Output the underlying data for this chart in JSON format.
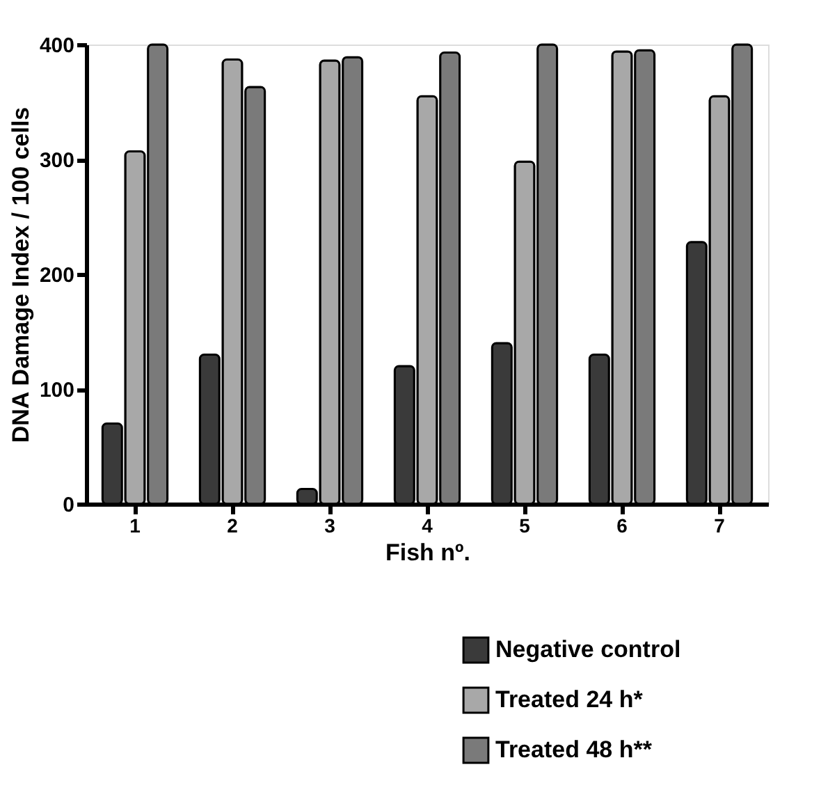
{
  "chart_data": {
    "type": "bar",
    "xlabel": "Fish nº.",
    "ylabel": "DNA Damage Index / 100 cells",
    "categories": [
      "1",
      "2",
      "3",
      "4",
      "5",
      "6",
      "7"
    ],
    "series": [
      {
        "name": "Negative control",
        "color": "#3a3a3a",
        "values": [
          70,
          130,
          13,
          120,
          140,
          130,
          228
        ]
      },
      {
        "name": "Treated 24 h*",
        "color": "#a8a8a8",
        "values": [
          307,
          387,
          386,
          355,
          298,
          394,
          355
        ]
      },
      {
        "name": "Treated 48 h**",
        "color": "#7a7a7a",
        "values": [
          400,
          363,
          389,
          393,
          400,
          395,
          400
        ]
      }
    ],
    "ylim": [
      0,
      400
    ],
    "yticks": [
      0,
      100,
      200,
      300,
      400
    ],
    "grid": false,
    "legend": "bottom right"
  }
}
